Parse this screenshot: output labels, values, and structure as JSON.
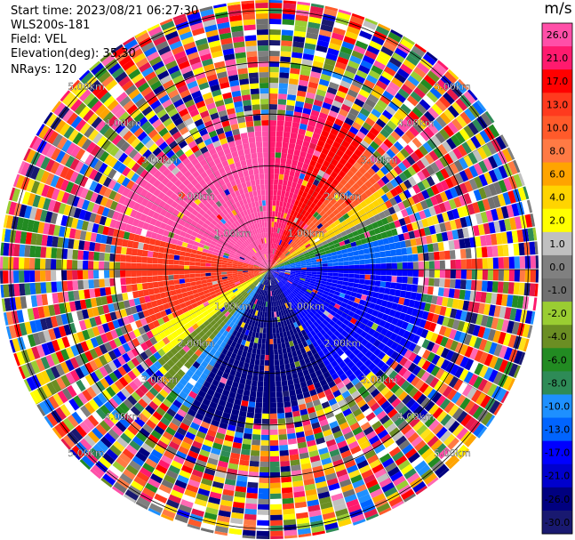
{
  "header": {
    "start_time": "Start time: 2023/08/21 06:27:30",
    "station": "WLS200s-181",
    "field": "Field: VEL",
    "elevation": "Elevation(deg): 35.30",
    "nrays": "NRays: 120"
  },
  "colorbar": {
    "unit": "m/s",
    "levels": [
      {
        "value": "26.0",
        "color": "#ff4fa8"
      },
      {
        "value": "21.0",
        "color": "#ff1a6e"
      },
      {
        "value": "17.0",
        "color": "#ff0000"
      },
      {
        "value": "13.0",
        "color": "#ff3a1e"
      },
      {
        "value": "10.0",
        "color": "#ff5a2a"
      },
      {
        "value": "8.0",
        "color": "#ff7a44"
      },
      {
        "value": "6.0",
        "color": "#ffa400"
      },
      {
        "value": "4.0",
        "color": "#ffd400"
      },
      {
        "value": "2.0",
        "color": "#ffff00"
      },
      {
        "value": "1.0",
        "color": "#c0c0c0"
      },
      {
        "value": "0.0",
        "color": "#808080"
      },
      {
        "value": "-1.0",
        "color": "#707070"
      },
      {
        "value": "-2.0",
        "color": "#9acd32"
      },
      {
        "value": "-4.0",
        "color": "#6b8e23"
      },
      {
        "value": "-6.0",
        "color": "#228b22"
      },
      {
        "value": "-8.0",
        "color": "#2e8b57"
      },
      {
        "value": "-10.0",
        "color": "#1e90ff"
      },
      {
        "value": "-13.0",
        "color": "#0064ff"
      },
      {
        "value": "-17.0",
        "color": "#0000ff"
      },
      {
        "value": "-21.0",
        "color": "#0000cd"
      },
      {
        "value": "-26.0",
        "color": "#000080"
      },
      {
        "value": "-30.0",
        "color": "#191970"
      }
    ]
  },
  "chart_data": {
    "type": "heatmap",
    "projection": "polar",
    "field": "VEL",
    "units": "m/s",
    "rays": 120,
    "range_rings_km": [
      1.0,
      2.0,
      3.0,
      4.0,
      5.0
    ],
    "ring_labels": [
      "1.00km",
      "2.00km",
      "3.00km",
      "4.00km",
      "5.00km"
    ],
    "max_range_km": 5.2,
    "pattern": {
      "near_field_max_km": 3.3,
      "azimuth_segments_deg": [
        {
          "from": 285,
          "to": 360,
          "level": "26.0"
        },
        {
          "from": 0,
          "to": 20,
          "level": "21.0"
        },
        {
          "from": 20,
          "to": 40,
          "level": "17.0"
        },
        {
          "from": 40,
          "to": 55,
          "level": "10.0"
        },
        {
          "from": 55,
          "to": 62,
          "level": "4.0"
        },
        {
          "from": 62,
          "to": 66,
          "level": "0.0"
        },
        {
          "from": 66,
          "to": 74,
          "level": "-6.0"
        },
        {
          "from": 74,
          "to": 86,
          "level": "-13.0"
        },
        {
          "from": 86,
          "to": 150,
          "level": "-17.0"
        },
        {
          "from": 150,
          "to": 210,
          "level": "-26.0"
        },
        {
          "from": 210,
          "to": 220,
          "level": "-10.0"
        },
        {
          "from": 220,
          "to": 232,
          "level": "-4.0"
        },
        {
          "from": 232,
          "to": 242,
          "level": "2.0"
        },
        {
          "from": 242,
          "to": 285,
          "level": "13.0"
        }
      ],
      "far_field": "noise"
    }
  }
}
